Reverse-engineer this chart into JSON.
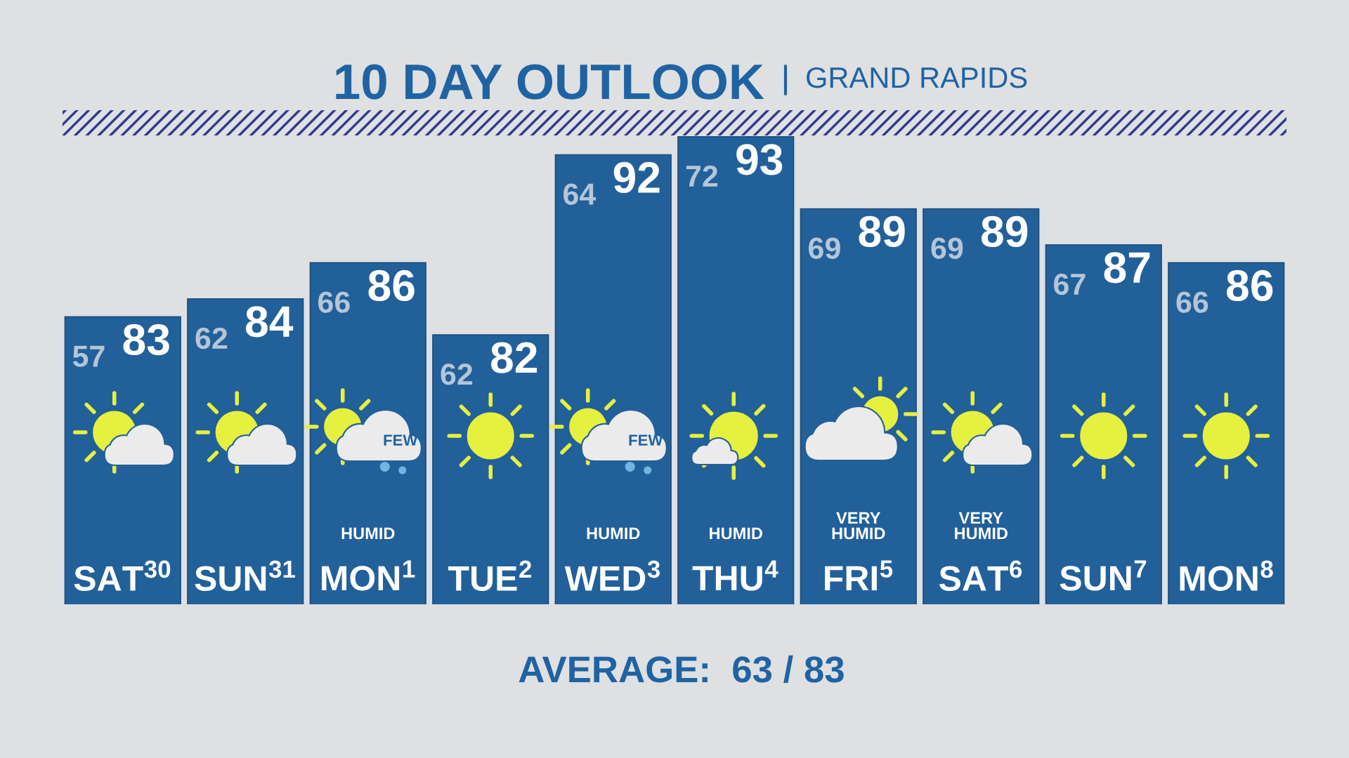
{
  "chart_data": {
    "type": "bar",
    "title": "10 DAY OUTLOOK",
    "subtitle": "GRAND RAPIDS",
    "categories": [
      "SAT$^{30}$",
      "SUN$^{31}$",
      "MON$^{1}$",
      "TUE$^{2}$",
      "WED$^{3}$",
      "THU$^{4}$",
      "FRI$^{5}$",
      "SAT$^{6}$",
      "SUN$^{7}$",
      "MON$^{8}$"
    ],
    "values": [
      83,
      84,
      86,
      82,
      92,
      93,
      89,
      89,
      87,
      86
    ],
    "color": "#22609a",
    "data_labels": true,
    "tick_labels": "x",
    "annotations": [
      {
        "text": "57",
        "x": "SAT$^{30}$",
        "y": 83
      },
      {
        "text": "62",
        "x": "SUN$^{31}$",
        "y": 84
      },
      {
        "text": "66",
        "x": "MON$^{1}$",
        "y": 86
      },
      {
        "text": "62",
        "x": "TUE$^{2}$",
        "y": 82
      },
      {
        "text": "64",
        "x": "WED$^{3}$",
        "y": 92
      },
      {
        "text": "72",
        "x": "THU$^{4}$",
        "y": 93
      },
      {
        "text": "69",
        "x": "FRI$^{5}$",
        "y": 89
      },
      {
        "text": "69",
        "x": "SAT$^{6}$",
        "y": 89
      },
      {
        "text": "67",
        "x": "SUN$^{7}$",
        "y": 87
      },
      {
        "text": "66",
        "x": "MON$^{8}$",
        "y": 86
      },
      "FEW",
      "HUMID",
      "FEW",
      "HUMID",
      "HUMID",
      "VERY\nHUMID",
      "VERY\nHUMID",
      "AVERAGE:  63 / 83"
    ]
  }
}
